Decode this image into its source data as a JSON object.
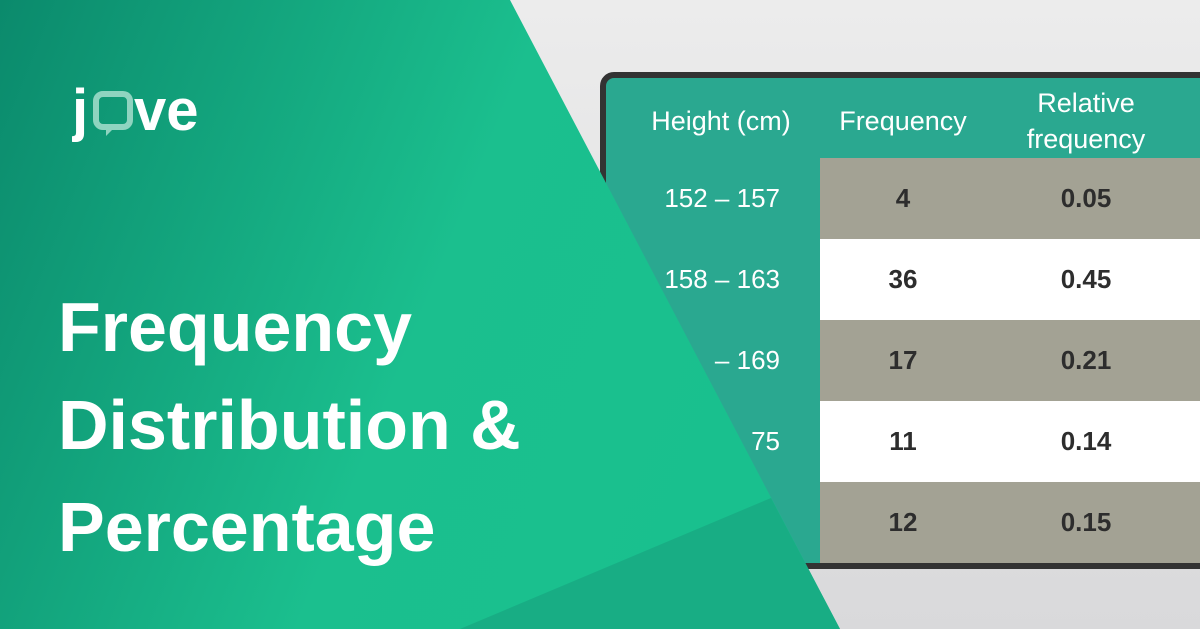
{
  "brand": {
    "logo_text": "jove",
    "colors": {
      "teal_dark": "#0b8a6c",
      "teal_light": "#1bbf8e",
      "table_header": "#2aa890",
      "row_gray": "#a3a294"
    }
  },
  "title": {
    "lines": [
      "Frequency",
      "Distribution &",
      "Percentage"
    ]
  },
  "table": {
    "headers": [
      "Height (cm)",
      "Frequency",
      "Relative frequency"
    ],
    "rows": [
      {
        "height": "152 – 157",
        "frequency": "4",
        "relative": "0.05"
      },
      {
        "height": "158 – 163",
        "frequency": "36",
        "relative": "0.45"
      },
      {
        "height": "– 169",
        "frequency": "17",
        "relative": "0.21"
      },
      {
        "height": "75",
        "frequency": "11",
        "relative": "0.14"
      },
      {
        "height": "",
        "frequency": "12",
        "relative": "0.15"
      }
    ]
  }
}
